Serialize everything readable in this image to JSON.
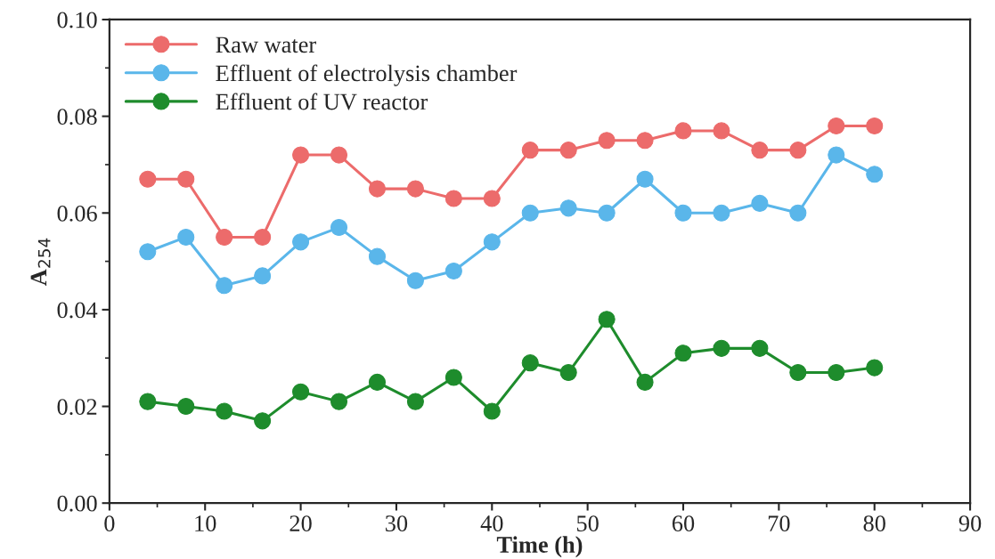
{
  "chart_data": {
    "type": "line",
    "xlabel": "Time (h)",
    "ylabel": "A$_{254}$",
    "x": [
      4,
      8,
      12,
      16,
      20,
      24,
      28,
      32,
      36,
      40,
      44,
      48,
      52,
      56,
      60,
      64,
      68,
      72,
      76,
      80
    ],
    "series": [
      {
        "name": "Raw water",
        "color": "#ec6b6b",
        "values": [
          0.067,
          0.067,
          0.055,
          0.055,
          0.072,
          0.072,
          0.065,
          0.065,
          0.063,
          0.063,
          0.073,
          0.073,
          0.075,
          0.075,
          0.077,
          0.077,
          0.073,
          0.073,
          0.078,
          0.078
        ]
      },
      {
        "name": "Effluent of electrolysis chamber",
        "color": "#5ab6ea",
        "values": [
          0.052,
          0.055,
          0.045,
          0.047,
          0.054,
          0.057,
          0.051,
          0.046,
          0.048,
          0.054,
          0.06,
          0.061,
          0.06,
          0.067,
          0.06,
          0.06,
          0.062,
          0.06,
          0.072,
          0.068
        ]
      },
      {
        "name": "Effluent of UV reactor",
        "color": "#1e8c2c",
        "values": [
          0.021,
          0.02,
          0.019,
          0.017,
          0.023,
          0.021,
          0.025,
          0.021,
          0.026,
          0.019,
          0.029,
          0.027,
          0.038,
          0.025,
          0.031,
          0.032,
          0.032,
          0.027,
          0.027,
          0.028
        ]
      }
    ],
    "xlim": [
      0,
      90
    ],
    "xticks": [
      0,
      10,
      20,
      30,
      40,
      50,
      60,
      70,
      80,
      90
    ],
    "ylim": [
      0,
      0.1
    ],
    "yticks": [
      {
        "value": 0,
        "label": "0.00"
      },
      0.02,
      0.04,
      0.06,
      0.08,
      {
        "value": 0.1,
        "label": "0.10"
      }
    ],
    "marker": "circle",
    "line_style": "solid",
    "legend": "top left",
    "grid": false
  }
}
